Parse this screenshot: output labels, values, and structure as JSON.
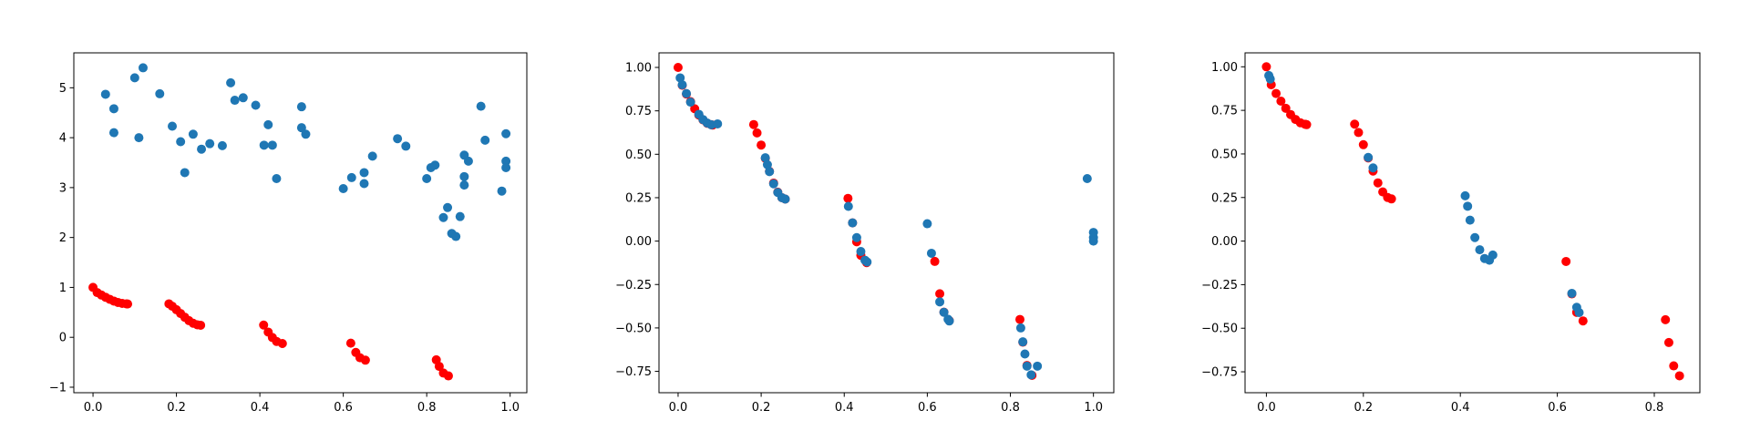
{
  "chart_data": [
    {
      "type": "scatter",
      "xlim": [
        -0.046,
        1.04
      ],
      "ylim": [
        -1.11,
        5.7
      ],
      "xticks": [
        {
          "value": 0,
          "label": "0.0"
        },
        {
          "value": 0.2,
          "label": "0.2"
        },
        {
          "value": 0.4,
          "label": "0.4"
        },
        {
          "value": 0.6,
          "label": "0.6"
        },
        {
          "value": 0.8,
          "label": "0.8"
        },
        {
          "value": 1,
          "label": "1.0"
        }
      ],
      "yticks": [
        {
          "value": -1,
          "label": "−1"
        },
        0,
        1,
        2,
        3,
        4,
        5
      ],
      "series": [
        {
          "color": "#ff0000",
          "x": [
            0,
            0.01,
            0.02,
            0.03,
            0.04,
            0.05,
            0.06,
            0.07,
            0.08,
            0.083,
            0.182,
            0.19,
            0.2,
            0.21,
            0.22,
            0.23,
            0.24,
            0.25,
            0.258,
            0.409,
            0.42,
            0.43,
            0.44,
            0.454,
            0.618,
            0.63,
            0.64,
            0.653,
            0.823,
            0.83,
            0.84,
            0.852
          ],
          "values": [
            1.0,
            0.897,
            0.847,
            0.803,
            0.762,
            0.726,
            0.698,
            0.679,
            0.67,
            0.668,
            0.671,
            0.623,
            0.553,
            0.477,
            0.402,
            0.334,
            0.282,
            0.25,
            0.242,
            0.246,
            0.105,
            -0.004,
            -0.082,
            -0.124,
            -0.117,
            -0.303,
            -0.409,
            -0.458,
            -0.451,
            -0.582,
            -0.716,
            -0.773
          ]
        },
        {
          "color": "#1f77b4",
          "x": [
            0.03,
            0.05,
            0.05,
            0.1,
            0.11,
            0.12,
            0.16,
            0.19,
            0.21,
            0.22,
            0.24,
            0.26,
            0.28,
            0.31,
            0.33,
            0.34,
            0.36,
            0.39,
            0.41,
            0.42,
            0.43,
            0.44,
            0.5,
            0.5,
            0.51,
            0.6,
            0.62,
            0.65,
            0.65,
            0.67,
            0.73,
            0.75,
            0.8,
            0.81,
            0.82,
            0.84,
            0.85,
            0.86,
            0.87,
            0.88,
            0.89,
            0.89,
            0.89,
            0.9,
            0.93,
            0.94,
            0.98,
            0.99,
            0.99,
            0.99
          ],
          "values": [
            4.87,
            4.58,
            4.1,
            5.2,
            4.0,
            5.4,
            4.88,
            4.23,
            3.92,
            3.3,
            4.07,
            3.77,
            3.88,
            3.84,
            5.1,
            4.75,
            4.8,
            4.65,
            3.85,
            4.26,
            3.85,
            3.18,
            4.2,
            4.62,
            4.07,
            2.98,
            3.2,
            3.3,
            3.08,
            3.63,
            3.98,
            3.83,
            3.18,
            3.4,
            3.45,
            2.4,
            2.6,
            2.08,
            2.02,
            2.42,
            3.22,
            3.05,
            3.65,
            3.53,
            4.63,
            3.95,
            2.93,
            3.53,
            3.4,
            4.08
          ]
        }
      ]
    },
    {
      "type": "scatter",
      "xlim": [
        -0.046,
        1.049
      ],
      "ylim": [
        -0.873,
        1.084
      ],
      "xticks": [
        {
          "value": 0,
          "label": "0.0"
        },
        {
          "value": 0.2,
          "label": "0.2"
        },
        {
          "value": 0.4,
          "label": "0.4"
        },
        {
          "value": 0.6,
          "label": "0.6"
        },
        {
          "value": 0.8,
          "label": "0.8"
        },
        {
          "value": 1,
          "label": "1.0"
        }
      ],
      "yticks": [
        {
          "value": -0.75,
          "label": "−0.75"
        },
        {
          "value": -0.5,
          "label": "−0.50"
        },
        {
          "value": -0.25,
          "label": "−0.25"
        },
        {
          "value": 0,
          "label": "0.00"
        },
        {
          "value": 0.25,
          "label": "0.25"
        },
        {
          "value": 0.5,
          "label": "0.50"
        },
        {
          "value": 0.75,
          "label": "0.75"
        },
        {
          "value": 1,
          "label": "1.00"
        }
      ],
      "series": [
        {
          "color": "#ff0000",
          "x": [
            0,
            0.01,
            0.02,
            0.03,
            0.04,
            0.05,
            0.06,
            0.07,
            0.08,
            0.083,
            0.182,
            0.19,
            0.2,
            0.21,
            0.22,
            0.23,
            0.24,
            0.25,
            0.258,
            0.409,
            0.42,
            0.43,
            0.44,
            0.454,
            0.618,
            0.63,
            0.64,
            0.653,
            0.823,
            0.83,
            0.84,
            0.852
          ],
          "values": [
            1.0,
            0.897,
            0.847,
            0.803,
            0.762,
            0.726,
            0.698,
            0.679,
            0.67,
            0.668,
            0.671,
            0.623,
            0.553,
            0.477,
            0.402,
            0.334,
            0.282,
            0.25,
            0.242,
            0.246,
            0.105,
            -0.004,
            -0.082,
            -0.124,
            -0.117,
            -0.303,
            -0.409,
            -0.458,
            -0.451,
            -0.582,
            -0.716,
            -0.773
          ]
        },
        {
          "color": "#1f77b4",
          "x": [
            0.005,
            0.01,
            0.02,
            0.03,
            0.05,
            0.06,
            0.07,
            0.08,
            0.095,
            0.21,
            0.215,
            0.22,
            0.23,
            0.24,
            0.25,
            0.258,
            0.41,
            0.42,
            0.43,
            0.44,
            0.45,
            0.455,
            0.6,
            0.61,
            0.63,
            0.64,
            0.65,
            0.653,
            0.825,
            0.83,
            0.835,
            0.84,
            0.85,
            0.865,
            0.985,
            1,
            1,
            1
          ],
          "values": [
            0.94,
            0.9,
            0.85,
            0.8,
            0.73,
            0.7,
            0.68,
            0.67,
            0.675,
            0.48,
            0.44,
            0.4,
            0.33,
            0.28,
            0.25,
            0.242,
            0.2,
            0.105,
            0.02,
            -0.06,
            -0.11,
            -0.12,
            0.1,
            -0.07,
            -0.35,
            -0.41,
            -0.45,
            -0.46,
            -0.5,
            -0.58,
            -0.65,
            -0.72,
            -0.77,
            -0.72,
            0.36,
            0.05,
            0.02,
            0
          ]
        }
      ]
    },
    {
      "type": "scatter",
      "xlim": [
        -0.044,
        0.894
      ],
      "ylim": [
        -0.87,
        1.08
      ],
      "xticks": [
        {
          "value": 0,
          "label": "0.0"
        },
        {
          "value": 0.2,
          "label": "0.2"
        },
        {
          "value": 0.4,
          "label": "0.4"
        },
        {
          "value": 0.6,
          "label": "0.6"
        },
        {
          "value": 0.8,
          "label": "0.8"
        }
      ],
      "yticks": [
        {
          "value": -0.75,
          "label": "−0.75"
        },
        {
          "value": -0.5,
          "label": "−0.50"
        },
        {
          "value": -0.25,
          "label": "−0.25"
        },
        {
          "value": 0,
          "label": "0.00"
        },
        {
          "value": 0.25,
          "label": "0.25"
        },
        {
          "value": 0.5,
          "label": "0.50"
        },
        {
          "value": 0.75,
          "label": "0.75"
        },
        {
          "value": 1,
          "label": "1.00"
        }
      ],
      "series": [
        {
          "color": "#ff0000",
          "x": [
            0,
            0.01,
            0.02,
            0.03,
            0.04,
            0.05,
            0.06,
            0.07,
            0.08,
            0.083,
            0.182,
            0.19,
            0.2,
            0.21,
            0.22,
            0.23,
            0.24,
            0.25,
            0.258,
            0.618,
            0.63,
            0.64,
            0.653,
            0.823,
            0.83,
            0.84,
            0.852
          ],
          "values": [
            1.0,
            0.897,
            0.847,
            0.803,
            0.762,
            0.726,
            0.698,
            0.679,
            0.67,
            0.668,
            0.671,
            0.623,
            0.553,
            0.477,
            0.402,
            0.334,
            0.282,
            0.25,
            0.242,
            -0.117,
            -0.303,
            -0.409,
            -0.458,
            -0.451,
            -0.582,
            -0.716,
            -0.773
          ]
        },
        {
          "color": "#1f77b4",
          "x": [
            0.005,
            0.008,
            0.21,
            0.22,
            0.41,
            0.415,
            0.42,
            0.43,
            0.44,
            0.45,
            0.46,
            0.467,
            0.63,
            0.64,
            0.645
          ],
          "values": [
            0.95,
            0.93,
            0.48,
            0.42,
            0.26,
            0.2,
            0.12,
            0.02,
            -0.05,
            -0.1,
            -0.11,
            -0.08,
            -0.3,
            -0.38,
            -0.41
          ]
        }
      ]
    }
  ]
}
